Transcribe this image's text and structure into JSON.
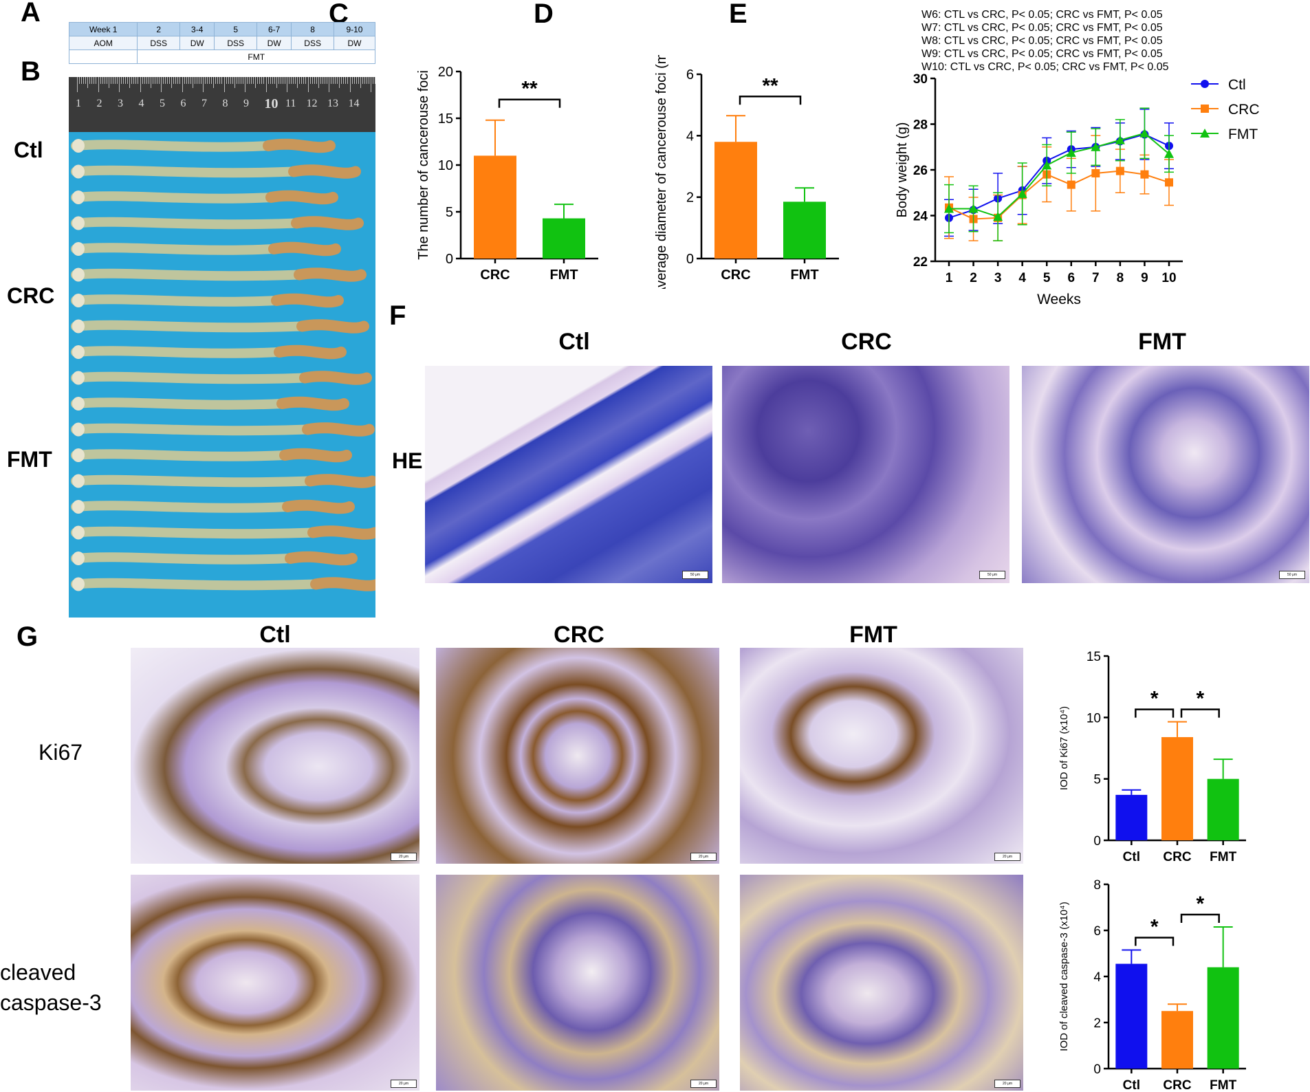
{
  "panels": {
    "A": "A",
    "B": "B",
    "C": "C",
    "D": "D",
    "E": "E",
    "F": "F",
    "G": "G"
  },
  "schedule": {
    "weeks": [
      "Week 1",
      "2",
      "3-4",
      "5",
      "6-7",
      "8",
      "9-10"
    ],
    "treatments": [
      "AOM",
      "DSS",
      "DW",
      "DSS",
      "DW",
      "DSS",
      "DW"
    ],
    "intervention": "FMT"
  },
  "ruler": {
    "numbers": [
      "1",
      "2",
      "3",
      "4",
      "5",
      "6",
      "7",
      "8",
      "9",
      "10",
      "11",
      "12",
      "13",
      "14"
    ]
  },
  "groups_B": [
    "Ctl",
    "CRC",
    "FMT"
  ],
  "he": {
    "row_label": "HE",
    "columns": [
      "Ctl",
      "CRC",
      "FMT"
    ],
    "scale": "50 μm"
  },
  "ihc": {
    "columns": [
      "Ctl",
      "CRC",
      "FMT"
    ],
    "rows": [
      "Ki67",
      "cleaved\ncaspase-3"
    ],
    "scale": "20 μm"
  },
  "colors": {
    "ctl": "#1010ee",
    "crc": "#ff7f0e",
    "fmt": "#11c211",
    "sched_header": "#b7d3ee",
    "blue_bg": "#2aa6d8"
  },
  "chart_data": [
    {
      "id": "C",
      "type": "bar",
      "categories": [
        "CRC",
        "FMT"
      ],
      "values": [
        11.0,
        4.3
      ],
      "errors": [
        3.8,
        1.5
      ],
      "colors": [
        "#ff7f0e",
        "#11c211"
      ],
      "ylabel": "The number of cancerouse foci",
      "ylim": [
        0,
        20
      ],
      "yticks": [
        "0",
        "5",
        "10",
        "15",
        "20"
      ],
      "significance": [
        {
          "from": 0,
          "to": 1,
          "label": "**"
        }
      ]
    },
    {
      "id": "D",
      "type": "bar",
      "categories": [
        "CRC",
        "FMT"
      ],
      "values": [
        3.8,
        1.85
      ],
      "errors": [
        0.85,
        0.45
      ],
      "colors": [
        "#ff7f0e",
        "#11c211"
      ],
      "ylabel": "Average diameter of cancerouse foci (mm)",
      "ylim": [
        0,
        6
      ],
      "yticks": [
        "0",
        "2",
        "4",
        "6"
      ],
      "significance": [
        {
          "from": 0,
          "to": 1,
          "label": "**"
        }
      ]
    },
    {
      "id": "E",
      "type": "line",
      "x": [
        1,
        2,
        3,
        4,
        5,
        6,
        7,
        8,
        9,
        10
      ],
      "xticks": [
        "1",
        "2",
        "3",
        "4",
        "5",
        "6",
        "7",
        "8",
        "9",
        "10"
      ],
      "xlabel": "Weeks",
      "ylabel": "Body weight (g)",
      "ylim": [
        22,
        30
      ],
      "yticks": [
        "22",
        "24",
        "26",
        "28",
        "30"
      ],
      "legend_position": "right",
      "annotations": [
        "W6: CTL vs CRC, P< 0.05; CRC vs FMT, P< 0.05",
        "W7: CTL vs CRC, P< 0.05; CRC vs FMT, P< 0.05",
        "W8: CTL vs CRC, P< 0.05; CRC vs FMT, P< 0.05",
        "W9: CTL vs CRC, P< 0.05; CRC vs FMT, P< 0.05",
        "W10: CTL vs CRC, P< 0.05; CRC vs FMT, P< 0.05"
      ],
      "series": [
        {
          "name": "Ctl",
          "marker": "circle",
          "color": "#1010ee",
          "values": [
            23.9,
            24.25,
            24.75,
            25.1,
            26.4,
            26.9,
            27.0,
            27.25,
            27.55,
            27.05
          ],
          "errors": [
            0.8,
            0.9,
            1.1,
            1.05,
            1.0,
            0.8,
            0.85,
            0.8,
            1.1,
            1.0
          ]
        },
        {
          "name": "CRC",
          "marker": "square",
          "color": "#ff7f0e",
          "values": [
            24.35,
            23.85,
            23.9,
            24.9,
            25.8,
            25.35,
            25.85,
            25.95,
            25.8,
            25.45
          ],
          "errors": [
            1.35,
            0.95,
            1.0,
            1.25,
            1.2,
            1.15,
            1.65,
            0.95,
            0.85,
            1.0
          ]
        },
        {
          "name": "FMT",
          "marker": "triangle",
          "color": "#11c211",
          "values": [
            24.3,
            24.3,
            23.95,
            24.95,
            26.2,
            26.75,
            27.0,
            27.3,
            27.6,
            26.7
          ],
          "errors": [
            1.05,
            1.0,
            1.05,
            1.35,
            0.9,
            0.9,
            0.8,
            0.9,
            1.1,
            0.8
          ]
        }
      ]
    },
    {
      "id": "G-Ki67",
      "type": "bar",
      "categories": [
        "Ctl",
        "CRC",
        "FMT"
      ],
      "values": [
        3.7,
        8.4,
        5.0
      ],
      "errors": [
        0.4,
        1.25,
        1.6
      ],
      "colors": [
        "#1010ee",
        "#ff7f0e",
        "#11c211"
      ],
      "ylabel": "IOD of Ki67 (x10⁴)",
      "ylim": [
        0,
        15
      ],
      "yticks": [
        "0",
        "5",
        "10",
        "15"
      ],
      "significance": [
        {
          "from": 0,
          "to": 1,
          "label": "*"
        },
        {
          "from": 1,
          "to": 2,
          "label": "*"
        }
      ]
    },
    {
      "id": "G-caspase",
      "type": "bar",
      "categories": [
        "Ctl",
        "CRC",
        "FMT"
      ],
      "values": [
        4.55,
        2.5,
        4.4
      ],
      "errors": [
        0.6,
        0.3,
        1.75
      ],
      "colors": [
        "#1010ee",
        "#ff7f0e",
        "#11c211"
      ],
      "ylabel": "IOD of cleaved caspase-3 (x10⁴)",
      "ylim": [
        0,
        8
      ],
      "yticks": [
        "0",
        "2",
        "4",
        "6",
        "8"
      ],
      "significance": [
        {
          "from": 0,
          "to": 1,
          "label": "*"
        },
        {
          "from": 1,
          "to": 2,
          "label": "*"
        }
      ]
    }
  ]
}
